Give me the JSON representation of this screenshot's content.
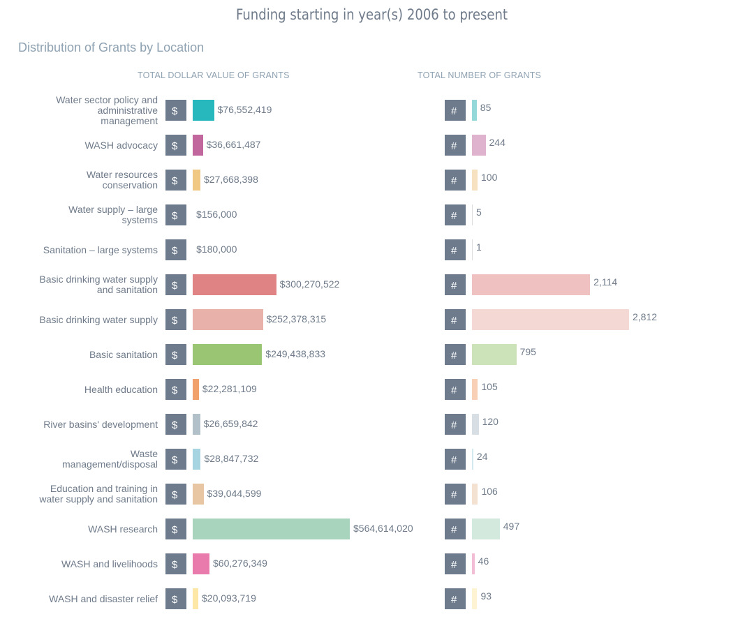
{
  "title": "Funding starting in year(s) 2006 to present",
  "subtitle": "Distribution of Grants by Location",
  "column_headers": {
    "dollar": "TOTAL DOLLAR VALUE OF GRANTS",
    "count": "TOTAL NUMBER OF GRANTS"
  },
  "badges": {
    "dollar": "$",
    "count": "#"
  },
  "chart_data": {
    "type": "bar",
    "orientation": "horizontal",
    "categories": [
      "Water sector policy and administrative management",
      "WASH advocacy",
      "Water resources conservation",
      "Water supply – large systems",
      "Sanitation – large systems",
      "Basic drinking water supply and sanitation",
      "Basic drinking water supply",
      "Basic sanitation",
      "Health education",
      "River basins' development",
      "Waste management/disposal",
      "Education and training in water supply and sanitation",
      "WASH research",
      "WASH and livelihoods",
      "WASH and disaster relief"
    ],
    "series": [
      {
        "name": "TOTAL DOLLAR VALUE OF GRANTS",
        "values": [
          76552419,
          36661487,
          27668398,
          156000,
          180000,
          300270522,
          252378315,
          249438833,
          22281109,
          26659842,
          28847732,
          39044599,
          564614020,
          60276349,
          20093719
        ],
        "labels": [
          "$76,552,419",
          "$36,661,487",
          "$27,668,398",
          "$156,000",
          "$180,000",
          "$300,270,522",
          "$252,378,315",
          "$249,438,833",
          "$22,281,109",
          "$26,659,842",
          "$28,847,732",
          "$39,044,599",
          "$564,614,020",
          "$60,276,349",
          "$20,093,719"
        ]
      },
      {
        "name": "TOTAL NUMBER OF GRANTS",
        "values": [
          85,
          244,
          100,
          5,
          1,
          2114,
          2812,
          795,
          105,
          120,
          24,
          106,
          497,
          46,
          93
        ],
        "labels": [
          "85",
          "244",
          "100",
          "5",
          "1",
          "2,114",
          "2,812",
          "795",
          "105",
          "120",
          "24",
          "106",
          "497",
          "46",
          "93"
        ]
      }
    ],
    "colors": {
      "dollar": [
        "#26b8bc",
        "#c2679e",
        "#f0c783",
        "#bbbbbb",
        "#bbbbbb",
        "#df8384",
        "#e8b2aa",
        "#9ac673",
        "#f0a16c",
        "#b2c0c9",
        "#a6d4e0",
        "#e8c6a4",
        "#a8d4bd",
        "#e87bac",
        "#fde7a6"
      ],
      "count": [
        "#94d8da",
        "#dfb3ce",
        "#f6e1c1",
        "#dddddd",
        "#dddddd",
        "#efc1c1",
        "#f3d8d4",
        "#cce2b9",
        "#f7d0b5",
        "#d8dfe4",
        "#d2e9ef",
        "#f3e2d1",
        "#d3e9de",
        "#f3bdd5",
        "#fef3d2"
      ]
    }
  }
}
